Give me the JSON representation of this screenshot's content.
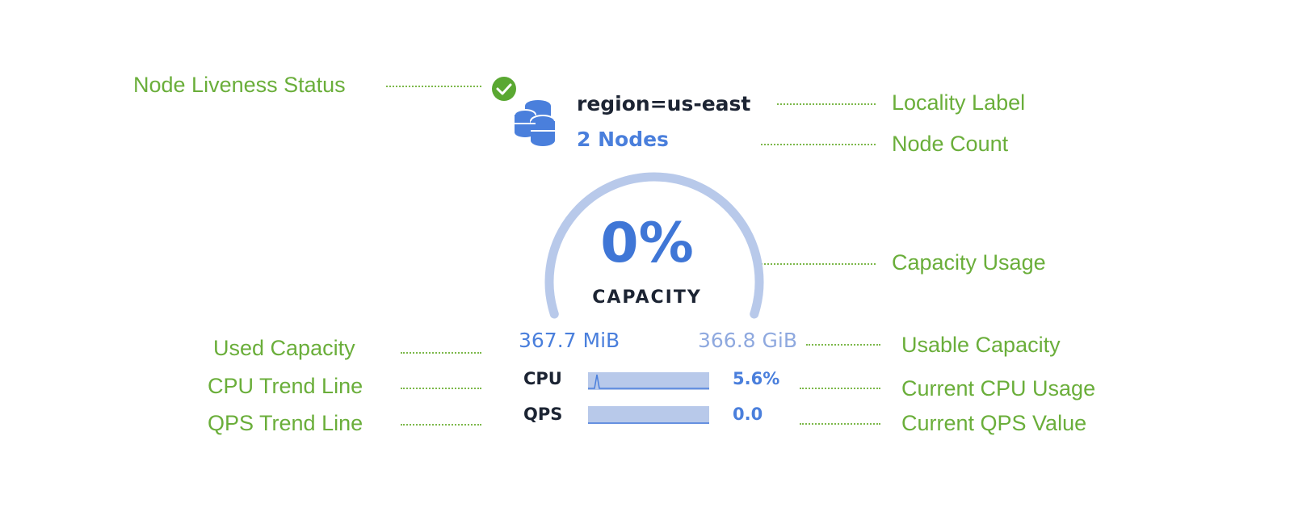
{
  "annotations": {
    "liveness": "Node Liveness Status",
    "locality": "Locality Label",
    "node_count": "Node Count",
    "capacity_usage": "Capacity Usage",
    "used_capacity": "Used Capacity",
    "usable_capacity": "Usable Capacity",
    "cpu_trend": "CPU Trend Line",
    "current_cpu": "Current CPU Usage",
    "qps_trend": "QPS Trend Line",
    "current_qps": "Current QPS Value"
  },
  "card": {
    "status": "live",
    "locality": "region=us-east",
    "node_count": "2 Nodes",
    "capacity_percent": "0%",
    "capacity_label": "CAPACITY",
    "used": "367.7 MiB",
    "usable": "366.8 GiB",
    "cpu_label": "CPU",
    "cpu_value": "5.6%",
    "qps_label": "QPS",
    "qps_value": "0.0"
  },
  "icons": {
    "status": "check-circle-icon",
    "nodes": "database-icon"
  },
  "colors": {
    "annotation": "#6aae3a",
    "accent": "#4a7fdc",
    "gauge": "#b8c9ea",
    "status_ok": "#5aa832"
  }
}
